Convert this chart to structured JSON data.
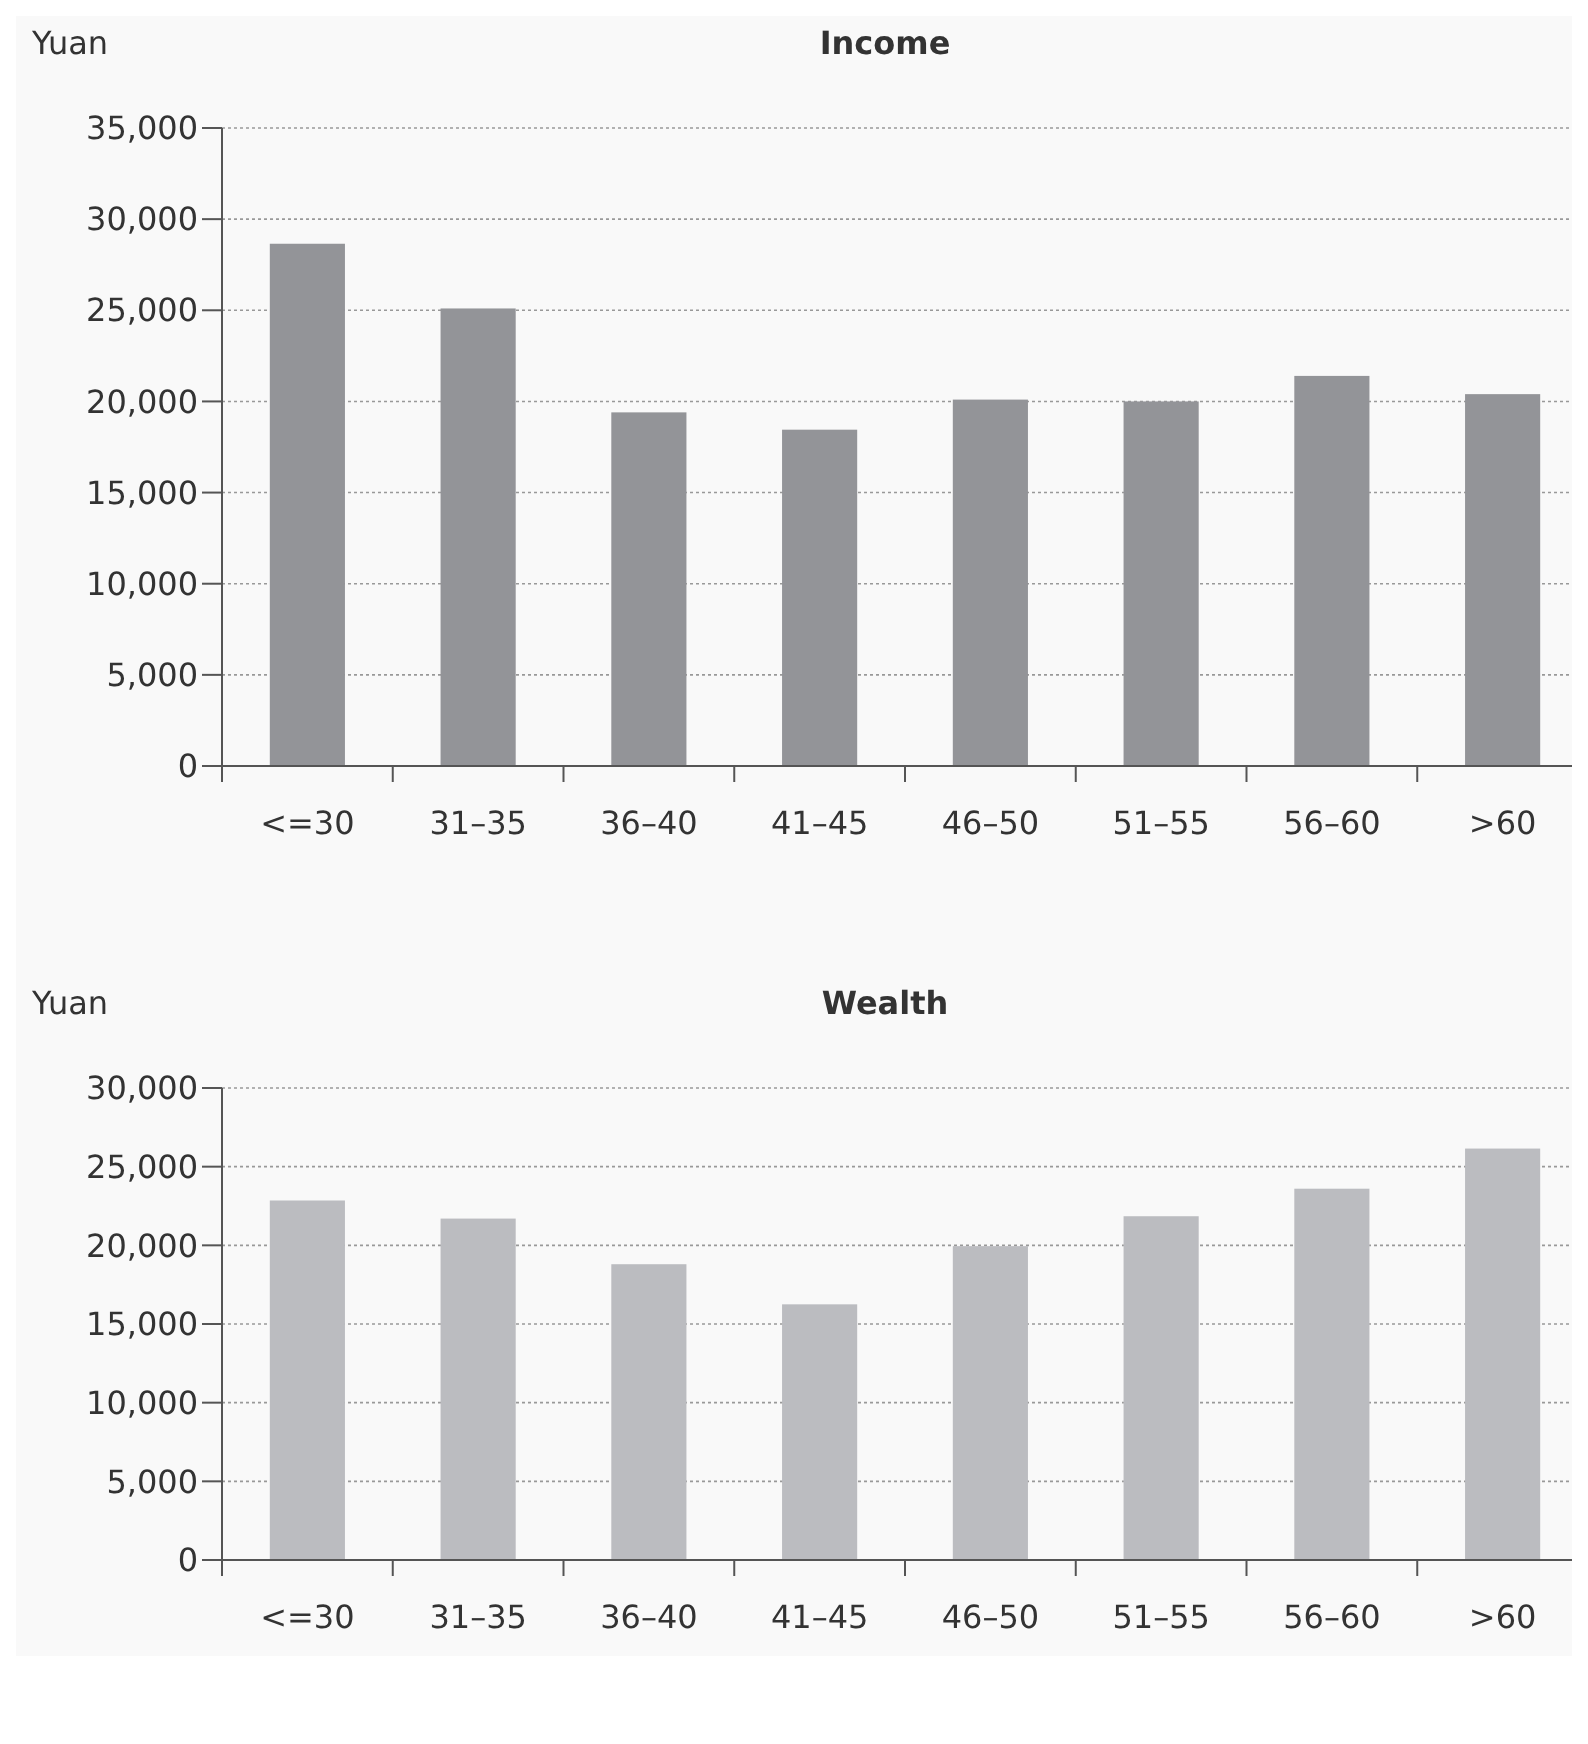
{
  "chart_data": [
    {
      "type": "bar",
      "title": "Income",
      "ylabel": "Yuan",
      "categories": [
        "<=30",
        "31–35",
        "36–40",
        "41–45",
        "46–50",
        "51–55",
        "56–60",
        ">60"
      ],
      "values": [
        28650,
        25100,
        19400,
        18450,
        20100,
        20000,
        21400,
        20400
      ],
      "color": "#939498",
      "ylim": [
        0,
        35000
      ],
      "yticks": [
        {
          "value": 0,
          "label": "0"
        },
        {
          "value": 5000,
          "label": "5,000"
        },
        {
          "value": 10000,
          "label": "10,000"
        },
        {
          "value": 15000,
          "label": "15,000"
        },
        {
          "value": 20000,
          "label": "20,000"
        },
        {
          "value": 25000,
          "label": "25,000"
        },
        {
          "value": 30000,
          "label": "30,000"
        },
        {
          "value": 35000,
          "label": "35,000"
        }
      ],
      "grid": "y"
    },
    {
      "type": "bar",
      "title": "Wealth",
      "ylabel": "Yuan",
      "categories": [
        "<=30",
        "31–35",
        "36–40",
        "41–45",
        "46–50",
        "51–55",
        "56–60",
        ">60"
      ],
      "values": [
        22850,
        21700,
        18800,
        16250,
        19950,
        21850,
        23600,
        26150
      ],
      "color": "#bbbcc0",
      "ylim": [
        0,
        30000
      ],
      "yticks": [
        {
          "value": 0,
          "label": "0"
        },
        {
          "value": 5000,
          "label": "5,000"
        },
        {
          "value": 10000,
          "label": "10,000"
        },
        {
          "value": 15000,
          "label": "15,000"
        },
        {
          "value": 20000,
          "label": "20,000"
        },
        {
          "value": 25000,
          "label": "25,000"
        },
        {
          "value": 30000,
          "label": "30,000"
        }
      ],
      "grid": "y"
    }
  ]
}
